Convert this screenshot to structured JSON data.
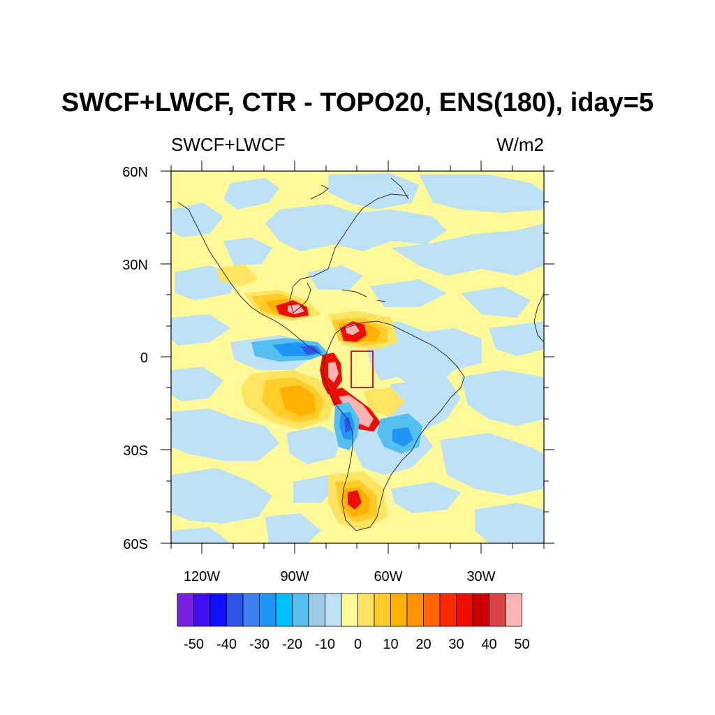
{
  "title": "SWCF+LWCF, CTR - TOPO20, ENS(180), iday=5",
  "left_label": "SWCF+LWCF",
  "right_label": "W/m2",
  "lat_labels": [
    "60N",
    "30N",
    "0",
    "30S",
    "60S"
  ],
  "lon_labels": [
    "120W",
    "90W",
    "60W",
    "30W"
  ],
  "colorbar": {
    "labels": [
      "-50",
      "-40",
      "-30",
      "-20",
      "-10",
      "0",
      "10",
      "20",
      "30",
      "40",
      "50"
    ],
    "colors": [
      "#7b1fe0",
      "#3f10f0",
      "#1010ff",
      "#2e56e6",
      "#3f80f0",
      "#1f96f5",
      "#00bfff",
      "#55c0f0",
      "#9ccbe6",
      "#bde1f5",
      "#fff99a",
      "#ffe462",
      "#ffcc2a",
      "#ffb000",
      "#ff9200",
      "#ff6400",
      "#ff2a00",
      "#ec0e00",
      "#cc0000",
      "#dc4444",
      "#ffb4b4"
    ]
  },
  "field_colors": {
    "light_blue": "#bde1f5",
    "blue2": "#9ccbe6",
    "blue3": "#55c0f0",
    "blue4": "#1f96f5",
    "blue5": "#2e56e6",
    "light_yellow": "#fff99a",
    "yellow2": "#ffe462",
    "orange": "#ffb000",
    "red": "#ec0e00",
    "pink": "#ffb4b4",
    "box": "#e8141e"
  }
}
